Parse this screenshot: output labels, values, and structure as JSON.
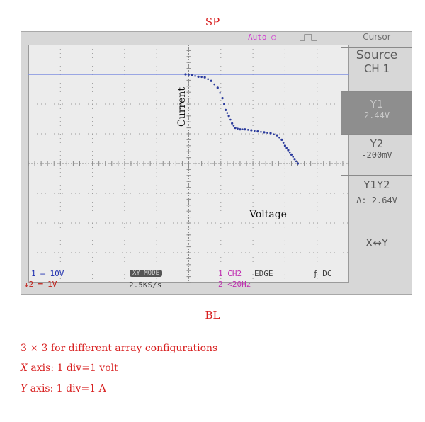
{
  "figure": {
    "title": "SP",
    "xlabel": "BL",
    "captions": [
      {
        "prefix": "",
        "text": "3 × 3 for different array configurations"
      },
      {
        "prefix": "X",
        "text": " axis: 1 div=1 volt"
      },
      {
        "prefix": "Y",
        "text": " axis: 1 div=1 A"
      }
    ]
  },
  "scope": {
    "top_status": "Auto",
    "panel": {
      "title": "Cursor",
      "source_label": "Source",
      "source_value": "CH 1",
      "y1_label": "Y1",
      "y1_value": "2.44V",
      "y2_label": "Y2",
      "y2_value": "-200mV",
      "y1y2_label": "Y1Y2",
      "y1y2_value": "Δ: 2.64V",
      "swap_label": "X↔Y"
    },
    "bottom": {
      "ch1_scale": "1 ═ 10V",
      "ch2_scale": "↓2 ═ 1V",
      "mode": "XY MODE",
      "sample_rate": "2.5KS/s",
      "trigger_channel": "1 CH2",
      "trigger_type": "EDGE",
      "trigger_coupling": "ƒ DC",
      "trigger_freq": "2 <20Hz"
    },
    "plot_labels": {
      "current": "Current",
      "voltage": "Voltage"
    },
    "colors": {
      "trace": "#2a3a9c",
      "cursor_line": "#7f8fe0",
      "panel_text": "#5a5a5a",
      "status_magenta": "#d03cd0"
    }
  },
  "chart_data": {
    "type": "scatter",
    "title": "SP",
    "xlabel": "BL",
    "ylabel": "",
    "divisions": {
      "x": 10,
      "y": 8
    },
    "series": [
      {
        "x": [
          4.9,
          5.1,
          5.3,
          5.5,
          5.7,
          5.9,
          6.05,
          6.15,
          6.25,
          6.35,
          6.45,
          6.6,
          6.75,
          6.95,
          7.15,
          7.35,
          7.55,
          7.75,
          7.9,
          8.0,
          8.1,
          8.2,
          8.3,
          8.4
        ],
        "y": [
          7.0,
          6.97,
          6.92,
          6.9,
          6.78,
          6.55,
          6.2,
          5.8,
          5.6,
          5.35,
          5.2,
          5.15,
          5.15,
          5.12,
          5.08,
          5.05,
          5.02,
          4.95,
          4.8,
          4.6,
          4.45,
          4.3,
          4.15,
          4.0
        ]
      }
    ],
    "cursor_line_y": 7.0
  }
}
